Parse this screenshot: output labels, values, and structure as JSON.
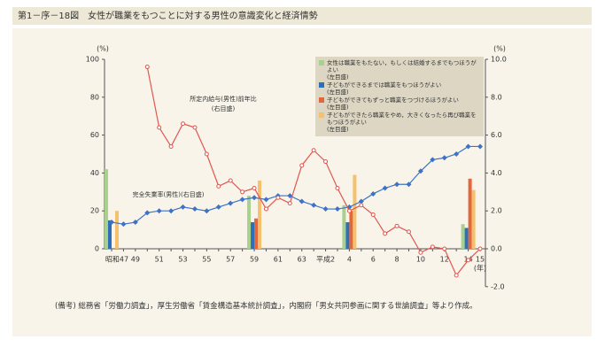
{
  "title": "第1－序－18図　女性が職業をもつことに対する男性の意識変化と経済情勢",
  "note": "(備考)  総務省「労働力調査」，厚生労働省「賃金構造基本統計調査」，内閣府「男女共同参画に関する世論調査」等より作成。",
  "chart_data": {
    "type": "combo",
    "y_label": "(%)",
    "y2_label": "(%)",
    "x_unit": "(年)",
    "legend_axis_note": "(左目盛)",
    "annotations": [
      "所定内給与(男性)前年比",
      "(右目盛)",
      "完全失業率(男性)(右目盛)"
    ],
    "categories": [
      "昭和47",
      null,
      "49",
      null,
      "51",
      null,
      "53",
      null,
      "55",
      null,
      "57",
      null,
      "59",
      null,
      "61",
      null,
      "63",
      null,
      "平成2",
      null,
      "4",
      null,
      "6",
      null,
      "8",
      null,
      "10",
      null,
      "12",
      null,
      "14",
      "15"
    ],
    "ylim": [
      0,
      100
    ],
    "yticks": [
      0,
      20,
      40,
      60,
      80,
      100
    ],
    "y2lim": [
      -2,
      10
    ],
    "y2ticks": [
      {
        "value": -2,
        "label": "-2.0"
      },
      {
        "value": 0,
        "label": "0.0"
      },
      {
        "value": 2,
        "label": "2.0"
      },
      {
        "value": 4,
        "label": "4.0"
      },
      {
        "value": 6,
        "label": "6.0"
      },
      {
        "value": 8,
        "label": "8.0"
      },
      {
        "value": 10,
        "label": "10.0"
      }
    ],
    "series": [
      {
        "name": "女性は職業をもたない，もしくは結婚するまでもつほうがよい",
        "type": "bar",
        "color": "#a9d18e",
        "values": [
          42,
          null,
          null,
          null,
          null,
          null,
          null,
          null,
          null,
          null,
          null,
          null,
          28,
          null,
          null,
          null,
          null,
          null,
          null,
          null,
          23,
          null,
          null,
          null,
          null,
          null,
          null,
          null,
          null,
          null,
          13,
          null
        ]
      },
      {
        "name": "子どもができるまでは職業をもつほうがよい",
        "type": "bar",
        "color": "#2e6fb7",
        "values": [
          15,
          null,
          null,
          null,
          null,
          null,
          null,
          null,
          null,
          null,
          null,
          null,
          14,
          null,
          null,
          null,
          null,
          null,
          null,
          null,
          14,
          null,
          null,
          null,
          null,
          null,
          null,
          null,
          null,
          null,
          11,
          null
        ]
      },
      {
        "name": "子どもができてもずっと職業をつづけるほうがよい",
        "type": "bar",
        "color": "#e2673a",
        "values": [
          null,
          null,
          null,
          null,
          null,
          null,
          null,
          null,
          null,
          null,
          null,
          null,
          16,
          null,
          null,
          null,
          null,
          null,
          null,
          null,
          20,
          null,
          null,
          null,
          null,
          null,
          null,
          null,
          null,
          null,
          37,
          null
        ]
      },
      {
        "name": "子どもができたら職業をやめ，大きくなったら再び職業をもつほうがよい",
        "type": "bar",
        "color": "#f5c16e",
        "values": [
          20,
          null,
          null,
          null,
          null,
          null,
          null,
          null,
          null,
          null,
          null,
          null,
          36,
          null,
          null,
          null,
          null,
          null,
          null,
          null,
          39,
          null,
          null,
          null,
          null,
          null,
          null,
          null,
          null,
          null,
          31,
          null
        ]
      },
      {
        "name": "完全失業率(男性)",
        "type": "line",
        "axis": "y2",
        "color": "#3d72c6",
        "marker": "diamond",
        "values": [
          1.4,
          1.3,
          1.4,
          1.9,
          2.0,
          2.0,
          2.2,
          2.1,
          2.0,
          2.2,
          2.4,
          2.6,
          2.7,
          2.6,
          2.8,
          2.8,
          2.5,
          2.3,
          2.1,
          2.1,
          2.2,
          2.5,
          2.9,
          3.2,
          3.4,
          3.4,
          4.1,
          4.7,
          4.8,
          5.0,
          5.4,
          5.4
        ]
      },
      {
        "name": "所定内給与(男性)前年比",
        "type": "line",
        "axis": "y2",
        "color": "#e0574f",
        "marker": "circle",
        "values": [
          null,
          null,
          null,
          9.6,
          6.4,
          5.4,
          6.6,
          6.4,
          5.0,
          3.3,
          3.6,
          3.0,
          3.2,
          2.1,
          2.7,
          2.4,
          4.4,
          5.2,
          4.6,
          3.2,
          2.0,
          2.3,
          1.8,
          0.8,
          1.2,
          0.9,
          -0.2,
          0.1,
          0.0,
          -1.4,
          -0.6,
          0.0
        ]
      }
    ]
  }
}
